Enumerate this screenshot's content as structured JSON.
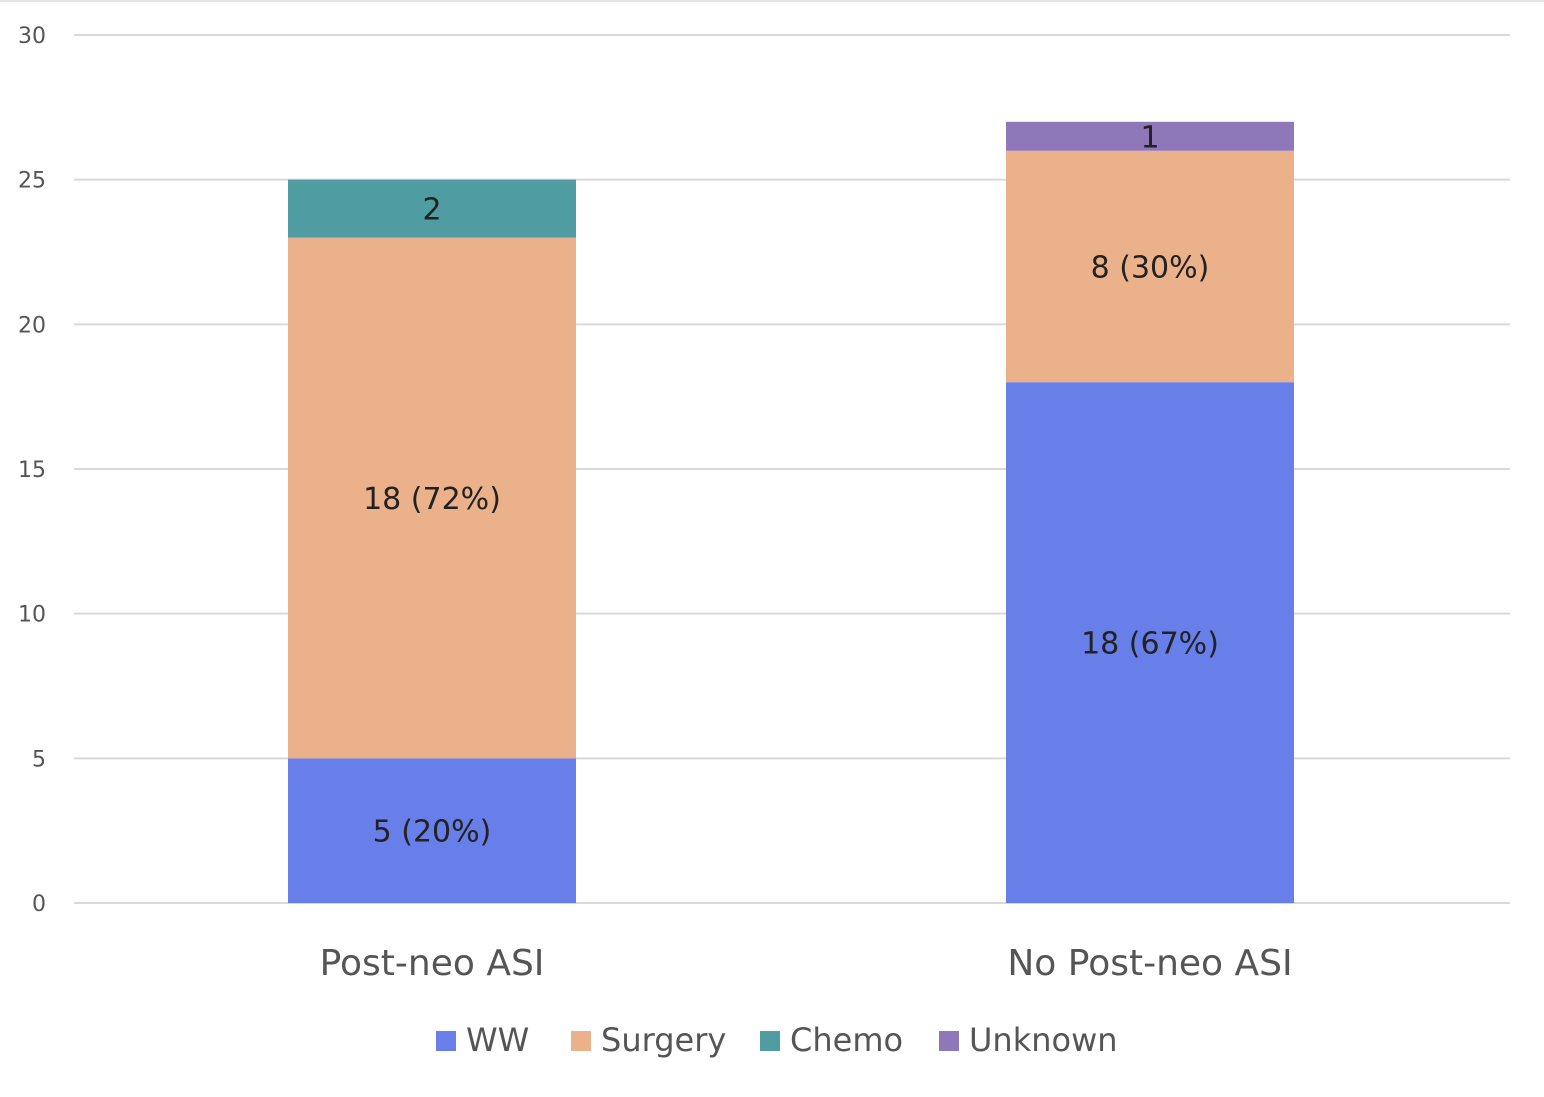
{
  "chart_data": {
    "type": "bar",
    "stacked": true,
    "title": "",
    "xlabel": "",
    "ylabel": "",
    "ylim": [
      0,
      30
    ],
    "yticks": [
      0,
      5,
      10,
      15,
      20,
      25,
      30
    ],
    "ytick_labels": [
      "0",
      "5",
      "10",
      "15",
      "20",
      "25",
      "30"
    ],
    "grid": true,
    "legend_position": "bottom",
    "categories": [
      "Post-neo ASI",
      "No Post-neo ASI"
    ],
    "series": [
      {
        "name": "WW",
        "color": "#687ee8",
        "values": [
          5,
          18
        ],
        "labels": [
          "5 (20%)",
          "18 (67%)"
        ]
      },
      {
        "name": "Surgery",
        "color": "#ebb18b",
        "values": [
          18,
          8
        ],
        "labels": [
          "18 (72%)",
          "8 (30%)"
        ]
      },
      {
        "name": "Chemo",
        "color": "#4f9da2",
        "values": [
          2,
          0
        ],
        "labels": [
          "2",
          ""
        ]
      },
      {
        "name": "Unknown",
        "color": "#8f78ba",
        "values": [
          0,
          1
        ],
        "labels": [
          "",
          "1"
        ]
      }
    ]
  }
}
